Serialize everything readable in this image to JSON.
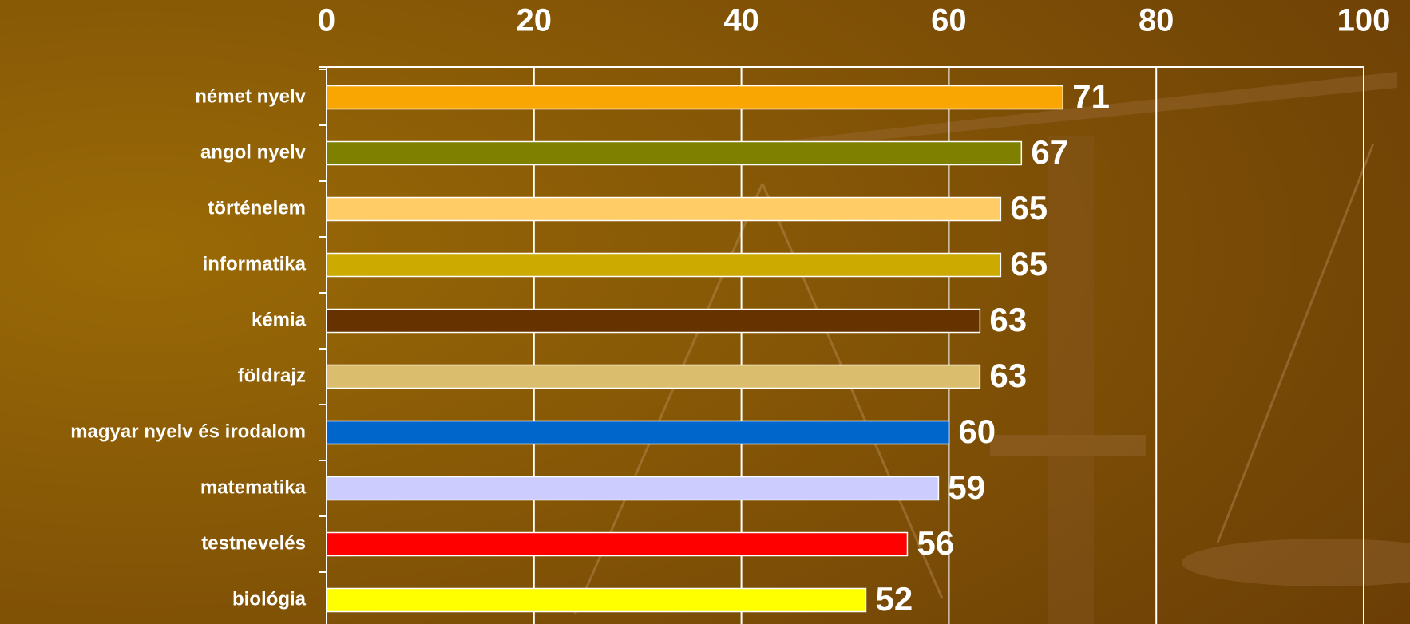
{
  "chart_data": {
    "type": "bar",
    "orientation": "horizontal",
    "categories": [
      "német nyelv",
      "angol nyelv",
      "történelem",
      "informatika",
      "kémia",
      "földrajz",
      "magyar nyelv és irodalom",
      "matematika",
      "testnevelés",
      "biológia"
    ],
    "values": [
      71,
      67,
      65,
      65,
      63,
      63,
      60,
      59,
      56,
      52
    ],
    "colors": [
      "#f9a602",
      "#808000",
      "#ffcc66",
      "#ccaa00",
      "#663300",
      "#dbbd6e",
      "#0066cc",
      "#ccccff",
      "#ff0000",
      "#ffff00"
    ],
    "xlim": [
      0,
      100
    ],
    "xticks": [
      0,
      20,
      40,
      60,
      80,
      100
    ],
    "grid": true
  }
}
